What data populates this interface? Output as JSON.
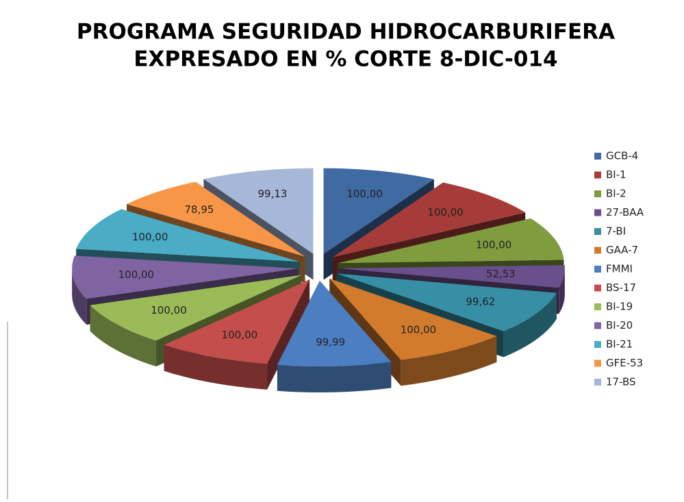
{
  "chart_data": {
    "type": "pie3d",
    "title": [
      "PROGRAMA SEGURIDAD HIDROCARBURIFERA",
      "EXPRESADO EN % CORTE 8-DIC-014"
    ],
    "categories": [
      "GCB-4",
      "BI-1",
      "BI-2",
      "27-BAA",
      "7-BI",
      "GAA-7",
      "FMMI",
      "BS-17",
      "BI-19",
      "BI-20",
      "BI-21",
      "GFE-53",
      "17-BS"
    ],
    "values": [
      100,
      100,
      100,
      52.53,
      99.62,
      100,
      99.99,
      100,
      100,
      100,
      100,
      78.95,
      99.13
    ],
    "value_labels": [
      "100,00",
      "100,00",
      "100,00",
      "52,53",
      "99,62",
      "100,00",
      "99,99",
      "100,00",
      "100,00",
      "100,00",
      "100,00",
      "78,95",
      "99,13"
    ],
    "colors": [
      "#3f6aa2",
      "#a63c3a",
      "#7f9c3f",
      "#6a4f8d",
      "#368fa4",
      "#d27b2d",
      "#4c7ec2",
      "#c44e4b",
      "#9bbb59",
      "#8064a2",
      "#4bacc6",
      "#f79646",
      "#a7b7d8"
    ],
    "legend": "right"
  }
}
